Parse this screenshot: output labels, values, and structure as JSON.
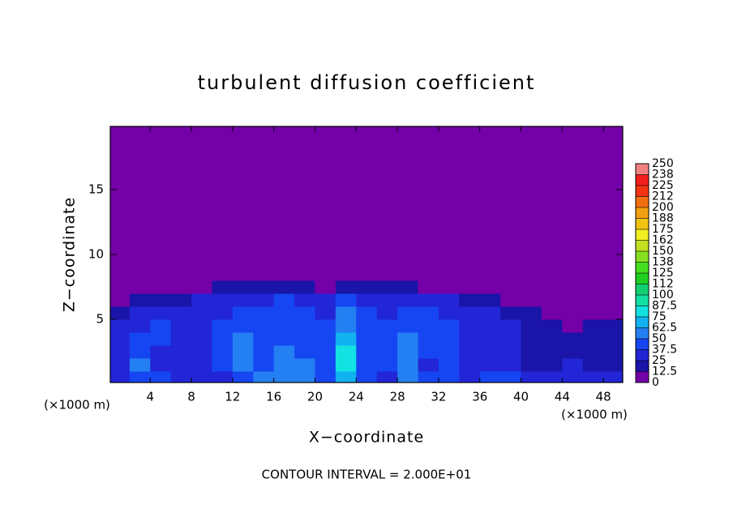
{
  "chart_data": {
    "type": "contour",
    "title": "turbulent diffusion coefficient",
    "x_label": "X−coordinate",
    "y_label": "Z−coordinate",
    "x_unit_label": "(×1000 m)",
    "y_unit_label": "(×1000 m)",
    "annotation": "CONTOUR INTERVAL = 2.000E+01",
    "xlim": [
      0.125,
      49.875
    ],
    "ylim": [
      0.125,
      19.875
    ],
    "xticks": [
      4,
      8,
      12,
      16,
      20,
      24,
      28,
      32,
      36,
      40,
      44,
      48
    ],
    "yticks": [
      5,
      10,
      15
    ],
    "colorbar": {
      "ticks": [
        0,
        12.5,
        25,
        37.5,
        50,
        62.5,
        75,
        87.5,
        100,
        {
          "value": 112.5,
          "label": "112"
        },
        125,
        {
          "value": 137.5,
          "label": "138"
        },
        150,
        {
          "value": 162.5,
          "label": "162"
        },
        175,
        {
          "value": 187.5,
          "label": "188"
        },
        200,
        {
          "value": 212.5,
          "label": "212"
        },
        225,
        {
          "value": 237.5,
          "label": "238"
        },
        250
      ],
      "colors": [
        "#7400a8",
        "#1a14a8",
        "#2226d6",
        "#1646f2",
        "#2480f2",
        "#12b2f0",
        "#12e2e2",
        "#12e0a2",
        "#12d072",
        "#20d020",
        "#44e020",
        "#84e020",
        "#c4e020",
        "#f2f020",
        "#f2c412",
        "#f2a012",
        "#f27012",
        "#f23412",
        "#f21e1e",
        "#f28282"
      ]
    },
    "field": {
      "x": [
        1,
        3,
        5,
        7,
        9,
        11,
        13,
        15,
        17,
        19,
        21,
        23,
        25,
        27,
        29,
        31,
        33,
        35,
        37,
        39,
        41,
        43,
        45,
        47,
        49
      ],
      "z": [
        0.5,
        1.5,
        2.5,
        3.5,
        4.5,
        5.5,
        6.5,
        7.5,
        8.5
      ],
      "values": [
        [
          30,
          45,
          40,
          30,
          35,
          35,
          40,
          50,
          60,
          55,
          45,
          70,
          40,
          35,
          50,
          40,
          45,
          35,
          40,
          45,
          25,
          30,
          35,
          30,
          25
        ],
        [
          35,
          50,
          35,
          30,
          30,
          40,
          55,
          45,
          60,
          50,
          40,
          80,
          45,
          40,
          55,
          35,
          40,
          30,
          35,
          30,
          20,
          20,
          25,
          20,
          20
        ],
        [
          30,
          40,
          35,
          30,
          30,
          45,
          55,
          45,
          50,
          45,
          40,
          80,
          45,
          40,
          55,
          40,
          45,
          30,
          35,
          25,
          15,
          15,
          20,
          15,
          15
        ],
        [
          35,
          40,
          45,
          35,
          30,
          40,
          50,
          40,
          45,
          45,
          40,
          70,
          45,
          45,
          50,
          45,
          40,
          35,
          30,
          25,
          15,
          15,
          15,
          15,
          20
        ],
        [
          30,
          35,
          40,
          35,
          30,
          40,
          45,
          40,
          40,
          45,
          40,
          60,
          40,
          40,
          45,
          45,
          40,
          35,
          30,
          25,
          20,
          15,
          10,
          15,
          15
        ],
        [
          20,
          25,
          30,
          30,
          30,
          35,
          40,
          40,
          45,
          45,
          35,
          50,
          40,
          35,
          40,
          40,
          35,
          30,
          25,
          20,
          15,
          10,
          10,
          10,
          10
        ],
        [
          10,
          15,
          20,
          20,
          25,
          30,
          35,
          35,
          40,
          35,
          30,
          40,
          35,
          35,
          35,
          30,
          25,
          20,
          15,
          10,
          8,
          5,
          5,
          5,
          5
        ],
        [
          5,
          5,
          8,
          10,
          10,
          15,
          20,
          20,
          20,
          15,
          10,
          20,
          20,
          20,
          15,
          10,
          8,
          5,
          5,
          5,
          3,
          3,
          3,
          3,
          3
        ],
        [
          2,
          2,
          3,
          3,
          4,
          5,
          8,
          6,
          5,
          4,
          3,
          5,
          6,
          8,
          5,
          3,
          2,
          2,
          2,
          2,
          2,
          2,
          2,
          2,
          2
        ]
      ]
    }
  }
}
